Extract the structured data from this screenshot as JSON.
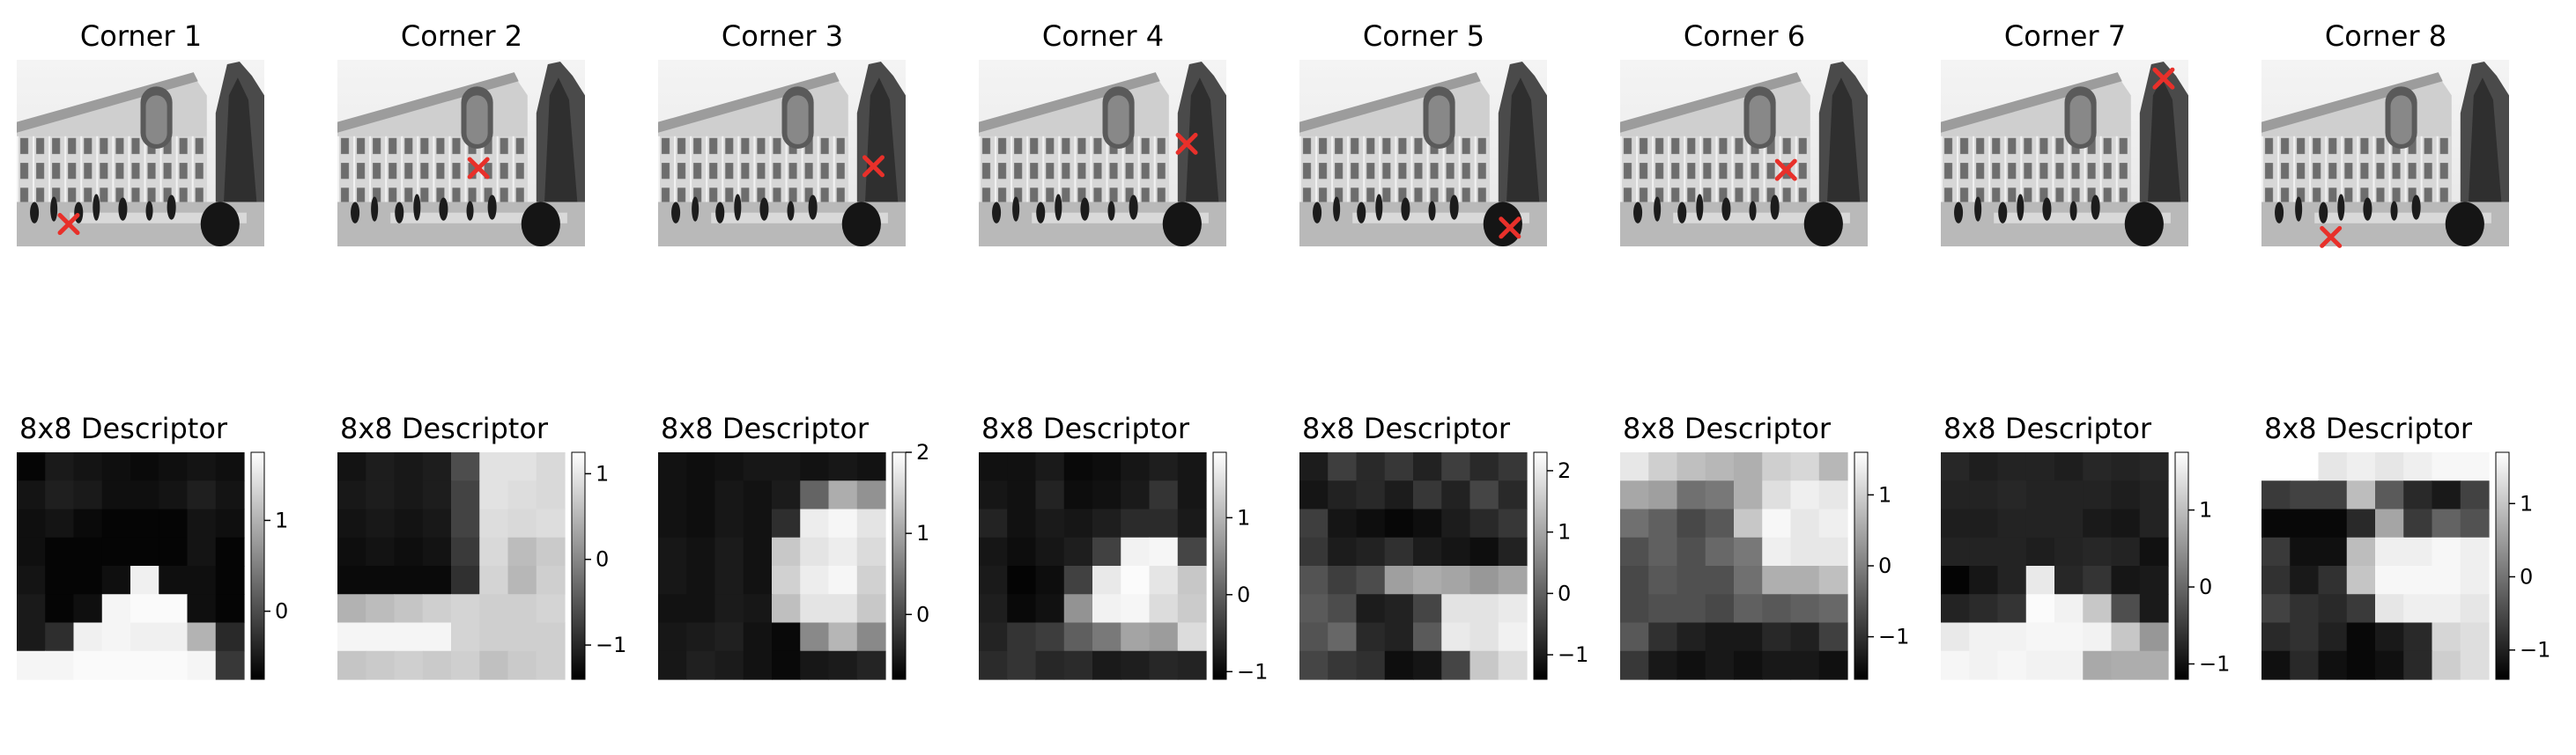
{
  "chart_data": [
    {
      "type": "image",
      "title": "Corner 1",
      "corner": {
        "x": 0.21,
        "y": 0.88
      },
      "marker": "x",
      "marker_color": "#e8302a"
    },
    {
      "type": "image",
      "title": "Corner 2",
      "corner": {
        "x": 0.57,
        "y": 0.58
      },
      "marker": "x",
      "marker_color": "#e8302a"
    },
    {
      "type": "image",
      "title": "Corner 3",
      "corner": {
        "x": 0.87,
        "y": 0.57
      },
      "marker": "x",
      "marker_color": "#e8302a"
    },
    {
      "type": "image",
      "title": "Corner 4",
      "corner": {
        "x": 0.84,
        "y": 0.45
      },
      "marker": "x",
      "marker_color": "#e8302a"
    },
    {
      "type": "image",
      "title": "Corner 5",
      "corner": {
        "x": 0.85,
        "y": 0.9
      },
      "marker": "x",
      "marker_color": "#e8302a"
    },
    {
      "type": "image",
      "title": "Corner 6",
      "corner": {
        "x": 0.67,
        "y": 0.59
      },
      "marker": "x",
      "marker_color": "#e8302a"
    },
    {
      "type": "image",
      "title": "Corner 7",
      "corner": {
        "x": 0.9,
        "y": 0.1
      },
      "marker": "x",
      "marker_color": "#e8302a"
    },
    {
      "type": "image",
      "title": "Corner 8",
      "corner": {
        "x": 0.28,
        "y": 0.95
      },
      "marker": "x",
      "marker_color": "#e8302a"
    },
    {
      "type": "heatmap",
      "title": "8x8 Descriptor",
      "colormap": "gray",
      "vmin": -0.75,
      "vmax": 1.75,
      "colorbar_ticks": [
        {
          "value": 1,
          "label": "1"
        },
        {
          "value": 0,
          "label": "0"
        }
      ],
      "values": [
        [
          -0.7,
          -0.5,
          -0.55,
          -0.6,
          -0.65,
          -0.6,
          -0.55,
          -0.6
        ],
        [
          -0.55,
          -0.45,
          -0.5,
          -0.6,
          -0.6,
          -0.55,
          -0.45,
          -0.55
        ],
        [
          -0.6,
          -0.55,
          -0.65,
          -0.7,
          -0.7,
          -0.7,
          -0.55,
          -0.6
        ],
        [
          -0.6,
          -0.7,
          -0.7,
          -0.7,
          -0.7,
          -0.7,
          -0.55,
          -0.7
        ],
        [
          -0.55,
          -0.7,
          -0.7,
          -0.6,
          1.6,
          -0.6,
          -0.6,
          -0.7
        ],
        [
          -0.5,
          -0.7,
          -0.6,
          1.65,
          1.7,
          1.7,
          -0.6,
          -0.7
        ],
        [
          -0.5,
          -0.3,
          1.6,
          1.65,
          1.6,
          1.6,
          1.0,
          -0.35
        ],
        [
          1.65,
          1.65,
          1.7,
          1.7,
          1.7,
          1.7,
          1.65,
          -0.2
        ]
      ]
    },
    {
      "type": "heatmap",
      "title": "8x8 Descriptor",
      "colormap": "gray",
      "vmin": -1.4,
      "vmax": 1.25,
      "colorbar_ticks": [
        {
          "value": 1,
          "label": "1"
        },
        {
          "value": 0,
          "label": "0"
        },
        {
          "value": -1,
          "label": "−1"
        }
      ],
      "values": [
        [
          -1.2,
          -1.1,
          -1.15,
          -1.1,
          -0.6,
          0.95,
          0.95,
          0.85
        ],
        [
          -1.15,
          -1.1,
          -1.15,
          -1.1,
          -0.7,
          0.95,
          0.9,
          0.85
        ],
        [
          -1.2,
          -1.15,
          -1.2,
          -1.15,
          -0.7,
          0.9,
          0.85,
          0.9
        ],
        [
          -1.25,
          -1.2,
          -1.25,
          -1.2,
          -0.8,
          0.85,
          0.55,
          0.7
        ],
        [
          -1.3,
          -1.3,
          -1.3,
          -1.3,
          -0.9,
          0.8,
          0.5,
          0.75
        ],
        [
          0.45,
          0.55,
          0.65,
          0.75,
          0.8,
          0.75,
          0.75,
          0.8
        ],
        [
          1.15,
          1.15,
          1.15,
          1.15,
          0.8,
          0.75,
          0.75,
          0.75
        ],
        [
          0.65,
          0.7,
          0.75,
          0.7,
          0.75,
          0.6,
          0.7,
          0.75
        ]
      ]
    },
    {
      "type": "heatmap",
      "title": "8x8 Descriptor",
      "colormap": "gray",
      "vmin": -0.8,
      "vmax": 2.0,
      "colorbar_ticks": [
        {
          "value": 2,
          "label": "2"
        },
        {
          "value": 1,
          "label": "1"
        },
        {
          "value": 0,
          "label": "0"
        }
      ],
      "values": [
        [
          -0.6,
          -0.65,
          -0.6,
          -0.55,
          -0.55,
          -0.6,
          -0.55,
          -0.6
        ],
        [
          -0.6,
          -0.65,
          -0.55,
          -0.6,
          -0.5,
          0.3,
          1.1,
          0.8
        ],
        [
          -0.6,
          -0.65,
          -0.55,
          -0.6,
          -0.3,
          1.8,
          1.9,
          1.7
        ],
        [
          -0.55,
          -0.6,
          -0.5,
          -0.6,
          1.4,
          1.7,
          1.8,
          1.6
        ],
        [
          -0.55,
          -0.6,
          -0.5,
          -0.6,
          1.5,
          1.8,
          1.9,
          1.5
        ],
        [
          -0.6,
          -0.6,
          -0.5,
          -0.55,
          1.3,
          1.7,
          1.7,
          1.4
        ],
        [
          -0.55,
          -0.5,
          -0.45,
          -0.6,
          -0.7,
          0.7,
          1.2,
          0.7
        ],
        [
          -0.55,
          -0.45,
          -0.5,
          -0.6,
          -0.7,
          -0.55,
          -0.5,
          -0.4
        ]
      ]
    },
    {
      "type": "heatmap",
      "title": "8x8 Descriptor",
      "colormap": "gray",
      "vmin": -1.1,
      "vmax": 1.85,
      "colorbar_ticks": [
        {
          "value": 1,
          "label": "1"
        },
        {
          "value": 0,
          "label": "0"
        },
        {
          "value": -1,
          "label": "−1"
        }
      ],
      "values": [
        [
          -0.9,
          -0.9,
          -0.8,
          -1.0,
          -0.95,
          -0.85,
          -0.75,
          -0.85
        ],
        [
          -0.85,
          -0.9,
          -0.7,
          -0.95,
          -0.9,
          -0.8,
          -0.5,
          -0.85
        ],
        [
          -0.7,
          -0.9,
          -0.8,
          -0.85,
          -0.75,
          -0.6,
          -0.6,
          -0.8
        ],
        [
          -0.85,
          -0.95,
          -0.85,
          -0.75,
          -0.35,
          1.7,
          1.75,
          -0.3
        ],
        [
          -0.8,
          -1.05,
          -0.95,
          -0.35,
          1.6,
          1.8,
          1.55,
          1.2
        ],
        [
          -0.75,
          -1.0,
          -0.9,
          0.6,
          1.7,
          1.75,
          1.45,
          1.25
        ],
        [
          -0.7,
          -0.5,
          -0.4,
          0.0,
          0.3,
          0.8,
          0.7,
          1.45
        ],
        [
          -0.6,
          -0.5,
          -0.65,
          -0.6,
          -0.8,
          -0.75,
          -0.65,
          -0.7
        ]
      ]
    },
    {
      "type": "heatmap",
      "title": "8x8 Descriptor",
      "colormap": "gray",
      "vmin": -1.4,
      "vmax": 2.3,
      "colorbar_ticks": [
        {
          "value": 2,
          "label": "2"
        },
        {
          "value": 1,
          "label": "1"
        },
        {
          "value": 0,
          "label": "0"
        },
        {
          "value": -1,
          "label": "−1"
        }
      ],
      "values": [
        [
          -1.0,
          -0.5,
          -0.8,
          -0.6,
          -0.9,
          -0.5,
          -0.8,
          -0.6
        ],
        [
          -1.1,
          -0.9,
          -0.8,
          -1.0,
          -0.6,
          -0.9,
          -0.4,
          -0.8
        ],
        [
          -0.5,
          -1.1,
          -1.2,
          -1.3,
          -1.2,
          -1.0,
          -0.8,
          -0.6
        ],
        [
          -0.6,
          -1.0,
          -0.9,
          -0.7,
          -1.0,
          -1.1,
          -1.2,
          -0.9
        ],
        [
          -0.2,
          -0.5,
          -0.3,
          0.9,
          1.1,
          1.0,
          0.8,
          1.0
        ],
        [
          -0.1,
          -0.3,
          -1.0,
          -0.9,
          -0.4,
          1.9,
          1.9,
          2.0
        ],
        [
          -0.2,
          0.1,
          -0.8,
          -0.9,
          -0.1,
          2.0,
          1.9,
          2.1
        ],
        [
          -0.4,
          -0.6,
          -0.7,
          -1.2,
          -1.1,
          -0.4,
          1.5,
          1.8
        ]
      ]
    },
    {
      "type": "heatmap",
      "title": "8x8 Descriptor",
      "colormap": "gray",
      "vmin": -1.6,
      "vmax": 1.6,
      "colorbar_ticks": [
        {
          "value": 1,
          "label": "1"
        },
        {
          "value": 0,
          "label": "0"
        },
        {
          "value": -1,
          "label": "−1"
        }
      ],
      "values": [
        [
          1.3,
          1.0,
          0.8,
          0.7,
          0.6,
          1.0,
          1.1,
          0.7
        ],
        [
          0.5,
          0.4,
          -0.2,
          -0.1,
          0.6,
          1.2,
          1.4,
          1.3
        ],
        [
          -0.2,
          -0.4,
          -0.7,
          -0.5,
          0.9,
          1.5,
          1.3,
          1.4
        ],
        [
          -0.6,
          -0.4,
          -0.6,
          -0.3,
          -0.1,
          1.4,
          1.3,
          1.3
        ],
        [
          -0.7,
          -0.5,
          -0.6,
          -0.6,
          -0.2,
          0.6,
          0.6,
          0.8
        ],
        [
          -0.7,
          -0.6,
          -0.6,
          -0.7,
          -0.4,
          -0.5,
          -0.4,
          -0.3
        ],
        [
          -0.5,
          -1.0,
          -1.2,
          -1.3,
          -1.3,
          -1.1,
          -1.2,
          -0.8
        ],
        [
          -0.9,
          -1.3,
          -1.4,
          -1.3,
          -1.4,
          -1.3,
          -1.3,
          -1.4
        ]
      ]
    },
    {
      "type": "heatmap",
      "title": "8x8 Descriptor",
      "colormap": "gray",
      "vmin": -1.2,
      "vmax": 1.75,
      "colorbar_ticks": [
        {
          "value": 1,
          "label": "1"
        },
        {
          "value": 0,
          "label": "0"
        },
        {
          "value": -1,
          "label": "−1"
        }
      ],
      "values": [
        [
          -0.75,
          -0.85,
          -0.8,
          -0.8,
          -0.85,
          -0.75,
          -0.8,
          -0.75
        ],
        [
          -0.8,
          -0.8,
          -0.75,
          -0.8,
          -0.8,
          -0.8,
          -0.85,
          -0.8
        ],
        [
          -0.85,
          -0.85,
          -0.8,
          -0.8,
          -0.8,
          -0.9,
          -0.95,
          -0.8
        ],
        [
          -0.8,
          -0.8,
          -0.8,
          -0.85,
          -0.8,
          -0.75,
          -0.8,
          -1.0
        ],
        [
          -1.15,
          -0.95,
          -0.8,
          1.5,
          -0.75,
          -0.6,
          -0.95,
          -0.9
        ],
        [
          -0.8,
          -0.7,
          -0.6,
          1.7,
          1.6,
          1.1,
          -0.3,
          -0.9
        ],
        [
          1.5,
          1.6,
          1.6,
          1.65,
          1.65,
          1.6,
          1.1,
          0.55
        ],
        [
          1.65,
          1.6,
          1.65,
          1.6,
          1.6,
          0.75,
          0.8,
          0.8
        ]
      ]
    },
    {
      "type": "heatmap",
      "title": "8x8 Descriptor",
      "colormap": "gray",
      "vmin": -1.4,
      "vmax": 1.7,
      "colorbar_ticks": [
        {
          "value": 1,
          "label": "1"
        },
        {
          "value": 0,
          "label": "0"
        },
        {
          "value": -1,
          "label": "−1"
        }
      ],
      "values": [
        [
          1.7,
          1.7,
          1.4,
          1.5,
          1.4,
          1.5,
          1.6,
          1.6
        ],
        [
          -0.7,
          -0.6,
          -0.6,
          0.9,
          -0.3,
          -0.9,
          -1.1,
          -0.6
        ],
        [
          -1.3,
          -1.3,
          -1.3,
          -0.9,
          0.6,
          -0.7,
          -0.2,
          -0.4
        ],
        [
          -0.7,
          -1.2,
          -1.2,
          0.9,
          1.5,
          1.5,
          1.6,
          1.5
        ],
        [
          -0.8,
          -1.1,
          -0.8,
          1.0,
          1.6,
          1.6,
          1.6,
          1.5
        ],
        [
          -0.6,
          -0.8,
          -0.9,
          -0.7,
          1.4,
          1.5,
          1.5,
          1.4
        ],
        [
          -0.9,
          -0.8,
          -1.0,
          -1.3,
          -1.1,
          -0.9,
          1.2,
          1.3
        ],
        [
          -1.2,
          -0.9,
          -1.2,
          -1.3,
          -1.2,
          -0.9,
          1.1,
          1.3
        ]
      ]
    }
  ]
}
